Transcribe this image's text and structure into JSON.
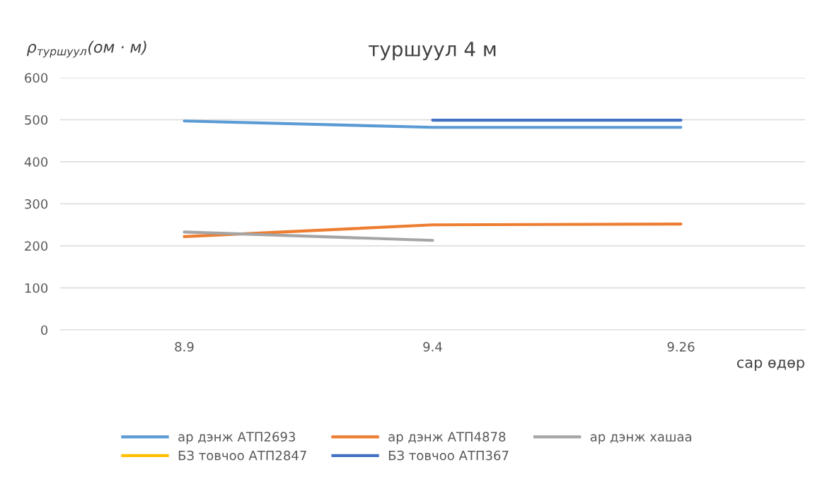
{
  "chart_data": {
    "type": "line",
    "title": "туршуул 4 м",
    "ylabel": "ρ$_{туршуул}$(ом · м)",
    "xlabel": "сар өдөр",
    "categories": [
      "8.9",
      "9.4",
      "9.26"
    ],
    "series": [
      {
        "name": "ар дэнж АТП2693",
        "color": "#5b9bd5",
        "values": [
          497,
          482,
          482
        ]
      },
      {
        "name": "ар дэнж АТП4878",
        "color": "#ed7d31",
        "values": [
          222,
          250,
          252
        ]
      },
      {
        "name": "ар дэнж хашаа",
        "color": "#a5a5a5",
        "values": [
          233,
          213,
          null
        ]
      },
      {
        "name": "БЗ товчоо АТП2847",
        "color": "#ffc000",
        "values": [
          null,
          null,
          null
        ]
      },
      {
        "name": "БЗ товчоо АТП367",
        "color": "#4472c4",
        "values": [
          null,
          499,
          499
        ]
      }
    ],
    "ylim": [
      0,
      600
    ],
    "yticks": [
      0,
      100,
      200,
      300,
      400,
      500,
      600
    ],
    "grid": "y",
    "legend": "bottom",
    "marker": "none",
    "line_style": "solid"
  }
}
